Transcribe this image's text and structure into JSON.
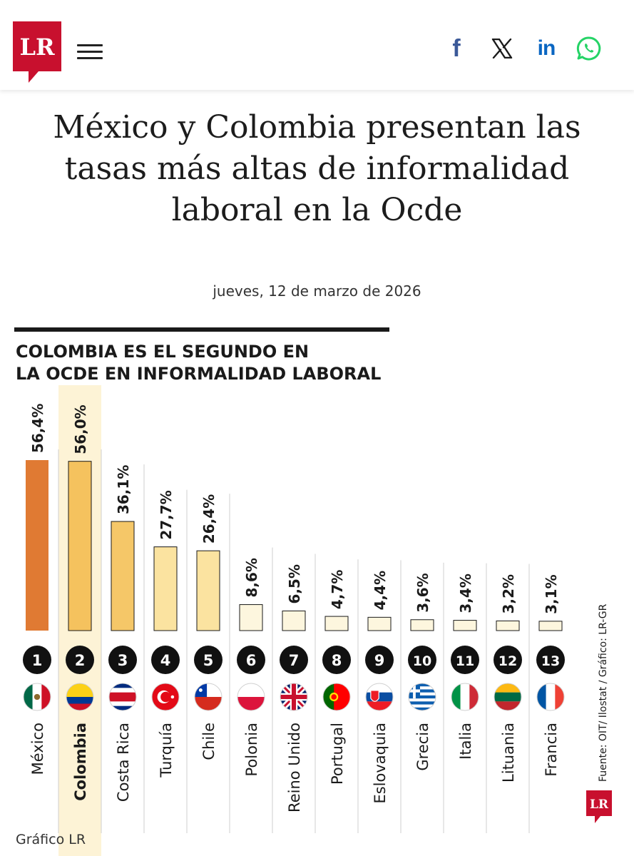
{
  "header": {
    "logo_text": "LR",
    "menu_icon": "hamburger-menu-icon",
    "social": [
      {
        "name": "facebook",
        "label": "f",
        "color": "#3b5998"
      },
      {
        "name": "x",
        "color": "#1a1a1a"
      },
      {
        "name": "linkedin",
        "label": "in",
        "color": "#0a66c2"
      },
      {
        "name": "whatsapp",
        "color": "#25d366"
      }
    ]
  },
  "article": {
    "title": "México y Colombia presentan las tasas más altas de informalidad laboral en la Ocde",
    "date": "jueves, 12 de marzo de 2026"
  },
  "chart_data": {
    "type": "bar",
    "title": "COLOMBIA ES EL SEGUNDO EN LA OCDE EN INFORMALIDAD LABORAL",
    "categories": [
      "México",
      "Colombia",
      "Costa Rica",
      "Turquía",
      "Chile",
      "Polonia",
      "Reino Unido",
      "Portugal",
      "Eslovaquia",
      "Grecia",
      "Italia",
      "Lituania",
      "Francia"
    ],
    "ranks": [
      "1",
      "2",
      "3",
      "4",
      "5",
      "6",
      "7",
      "8",
      "9",
      "10",
      "11",
      "12",
      "13"
    ],
    "values": [
      56.4,
      56.0,
      36.1,
      27.7,
      26.4,
      8.6,
      6.5,
      4.7,
      4.4,
      3.6,
      3.4,
      3.2,
      3.1
    ],
    "value_labels": [
      "56,4%",
      "56,0%",
      "36,1%",
      "27,7%",
      "26,4%",
      "8,6%",
      "6,5%",
      "4,7%",
      "4,4%",
      "3,6%",
      "3,4%",
      "3,2%",
      "3,1%"
    ],
    "highlight": "Colombia",
    "ylim": [
      0,
      60
    ],
    "colors": {
      "first": "#e07a33",
      "second": "#f5c25e",
      "third": "#f5c768",
      "mid": "#fbe3a0",
      "low": "#fdf6de",
      "highlight_bg": "#fdf3d6",
      "stroke": "#1a1a1a"
    },
    "source": "Fuente: OIT/ Ilostat / Gráfico: LR-GR",
    "credit": "Gráfico LR"
  }
}
